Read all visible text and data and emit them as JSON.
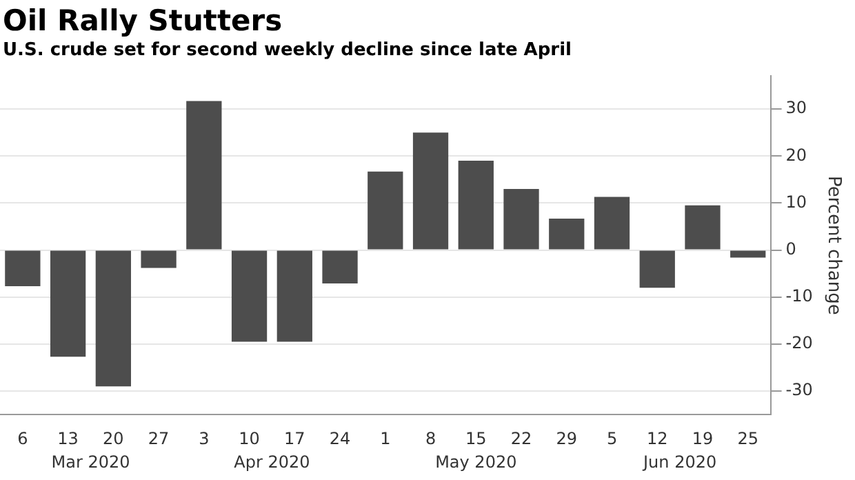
{
  "chart_data": {
    "type": "bar",
    "title": "Oil Rally Stutters",
    "subtitle": "U.S. crude set for second weekly decline since late April",
    "ylabel": "Percent change",
    "categories": [
      "6",
      "13",
      "20",
      "27",
      "3",
      "10",
      "17",
      "24",
      "1",
      "8",
      "15",
      "22",
      "29",
      "5",
      "12",
      "19",
      "25"
    ],
    "values": [
      -7.7,
      -22.7,
      -29,
      -3.8,
      31.7,
      -19.5,
      -19.5,
      -7.1,
      16.7,
      25,
      19,
      13,
      6.7,
      11.3,
      -8,
      9.5,
      -1.6
    ],
    "color": "#4d4d4d",
    "ylim": [
      -35,
      37
    ],
    "yticks": [
      -30,
      -20,
      -10,
      0,
      10,
      20,
      30
    ],
    "grid": "y",
    "annotations": [
      "Mar 2020",
      "Apr 2020",
      "May 2020",
      "Jun 2020"
    ]
  }
}
